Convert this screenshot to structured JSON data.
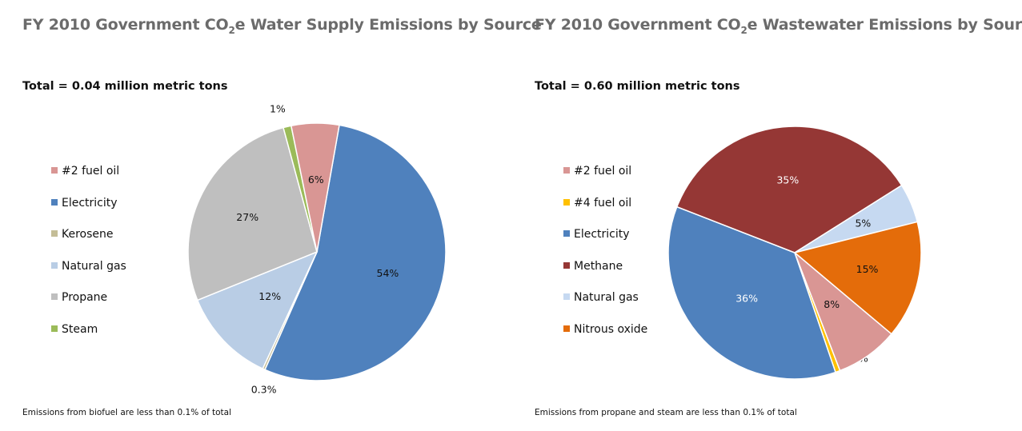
{
  "chart_data": [
    {
      "type": "pie",
      "title_main": "FY 2010 Government CO",
      "title_sub": "2",
      "title_rest": "e Water Supply Emissions by Source",
      "subtitle": "Total = 0.04 million metric tons",
      "footnote": "Emissions from biofuel are less than 0.1% of total",
      "legend": [
        {
          "label": "#2 fuel oil",
          "color": "#d99694"
        },
        {
          "label": "Electricity",
          "color": "#4f81bd"
        },
        {
          "label": "Kerosene",
          "color": "#c4bd97"
        },
        {
          "label": "Natural gas",
          "color": "#b9cde5"
        },
        {
          "label": "Propane",
          "color": "#bfbfbf"
        },
        {
          "label": "Steam",
          "color": "#9bbb59"
        }
      ],
      "slices": [
        {
          "label": "Electricity",
          "value": 54,
          "display": "54%",
          "color": "#4f81bd"
        },
        {
          "label": "Kerosene",
          "value": 0.3,
          "display": "0.3%",
          "color": "#c4bd97"
        },
        {
          "label": "Natural gas",
          "value": 12,
          "display": "12%",
          "color": "#b9cde5"
        },
        {
          "label": "Propane",
          "value": 27,
          "display": "27%",
          "color": "#bfbfbf"
        },
        {
          "label": "Steam",
          "value": 1,
          "display": "1%",
          "color": "#9bbb59"
        },
        {
          "label": "#2 fuel oil",
          "value": 6,
          "display": "6%",
          "color": "#d99694"
        }
      ]
    },
    {
      "type": "pie",
      "title_main": "FY 2010 Government CO",
      "title_sub": "2",
      "title_rest": "e Wastewater Emissions by Source",
      "subtitle": "Total = 0.60 million metric tons",
      "footnote": "Emissions from propane and steam are less than 0.1% of total",
      "legend": [
        {
          "label": "#2 fuel oil",
          "color": "#d99694"
        },
        {
          "label": "#4 fuel oil",
          "color": "#ffc000"
        },
        {
          "label": "Electricity",
          "color": "#4f81bd"
        },
        {
          "label": "Methane",
          "color": "#953735"
        },
        {
          "label": "Natural gas",
          "color": "#c6d9f1"
        },
        {
          "label": "Nitrous oxide",
          "color": "#e46c0a"
        }
      ],
      "slices": [
        {
          "label": "#4 fuel oil",
          "value": 0.6,
          "display": "0.6%",
          "color": "#ffc000"
        },
        {
          "label": "Electricity",
          "value": 36,
          "display": "36%",
          "color": "#4f81bd"
        },
        {
          "label": "Methane",
          "value": 35,
          "display": "35%",
          "color": "#953735"
        },
        {
          "label": "Natural gas",
          "value": 5,
          "display": "5%",
          "color": "#c6d9f1"
        },
        {
          "label": "Nitrous oxide",
          "value": 15,
          "display": "15%",
          "color": "#e46c0a"
        },
        {
          "label": "#2 fuel oil",
          "value": 8,
          "display": "8%",
          "color": "#d99694"
        }
      ]
    }
  ]
}
